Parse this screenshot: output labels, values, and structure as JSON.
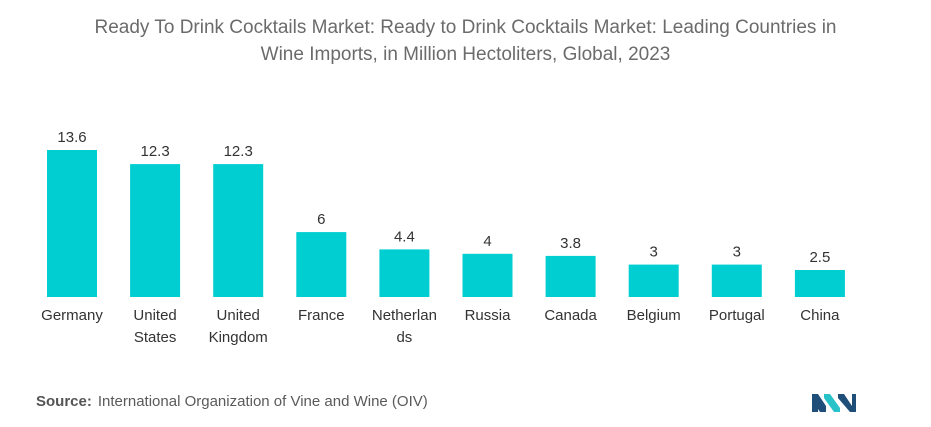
{
  "chart_data": {
    "type": "bar",
    "title_lines": [
      "Ready To Drink Cocktails Market: Ready to Drink Cocktails Market: Leading Countries in",
      "Wine Imports, in Million Hectoliters, Global, 2023"
    ],
    "categories": [
      [
        "Germany"
      ],
      [
        "United",
        "States"
      ],
      [
        "United",
        "Kingdom"
      ],
      [
        "France"
      ],
      [
        "Netherlan",
        "ds"
      ],
      [
        "Russia"
      ],
      [
        "Canada"
      ],
      [
        "Belgium"
      ],
      [
        "Portugal"
      ],
      [
        "China"
      ]
    ],
    "values": [
      13.6,
      12.3,
      12.3,
      6,
      4.4,
      4,
      3.8,
      3,
      3,
      2.5
    ],
    "value_labels": [
      "13.6",
      "12.3",
      "12.3",
      "6",
      "4.4",
      "4",
      "3.8",
      "3",
      "3",
      "2.5"
    ],
    "bar_color": "#00CED1",
    "ylim": [
      0,
      13.6
    ],
    "xlabel": "",
    "ylabel": "",
    "grid": false,
    "legend": "none"
  },
  "source": {
    "label": "Source:",
    "text": "International Organization of Vine and Wine (OIV)"
  },
  "logo": {
    "icon": "mordor-intelligence-logo-icon",
    "colors": [
      "#1f4e79",
      "#27c3c9"
    ]
  }
}
